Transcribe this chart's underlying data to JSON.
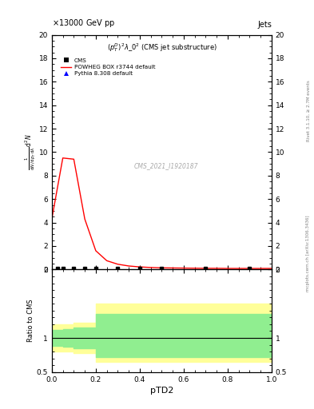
{
  "title_top": "13000 GeV pp",
  "title_right": "Jets",
  "plot_title": "$(p_T^D)^2\\lambda\\_0^2$ (CMS jet substructure)",
  "cms_label": "CMS_2021_I1920187",
  "xlabel": "pTD2",
  "ylabel_ratio": "Ratio to CMS",
  "right_label_top": "Rivet 3.1.10, ≥ 2.7M events",
  "right_label_bottom": "mcplots.cern.ch [arXiv:1306.3436]",
  "xlim": [
    0,
    1
  ],
  "ylim_main": [
    0,
    20
  ],
  "ylim_ratio": [
    0.5,
    2
  ],
  "yticks_main": [
    0,
    2,
    4,
    6,
    8,
    10,
    12,
    14,
    16,
    18,
    20
  ],
  "yticks_ratio": [
    0.5,
    1,
    2
  ],
  "cms_data_x": [
    0.025,
    0.05,
    0.1,
    0.15,
    0.2,
    0.3,
    0.4,
    0.5,
    0.7,
    0.9
  ],
  "cms_data_y": [
    0.08,
    0.08,
    0.08,
    0.08,
    0.08,
    0.08,
    0.08,
    0.08,
    0.08,
    0.08
  ],
  "cms_color": "#000080",
  "powheg_x": [
    0.0,
    0.05,
    0.1,
    0.15,
    0.2,
    0.25,
    0.3,
    0.35,
    0.4,
    0.45,
    0.5,
    0.55,
    0.6,
    0.65,
    0.7,
    0.75,
    0.8,
    0.85,
    0.9,
    0.95,
    1.0
  ],
  "powheg_y": [
    4.3,
    9.5,
    9.4,
    4.3,
    1.6,
    0.75,
    0.45,
    0.3,
    0.22,
    0.17,
    0.14,
    0.13,
    0.12,
    0.11,
    0.1,
    0.1,
    0.09,
    0.09,
    0.09,
    0.09,
    0.09
  ],
  "powheg_color": "#ff0000",
  "pythia_data_x": [
    0.025,
    0.05,
    0.1,
    0.15,
    0.2,
    0.3,
    0.4,
    0.5,
    0.7,
    0.9
  ],
  "pythia_data_y": [
    0.08,
    0.08,
    0.08,
    0.08,
    0.08,
    0.08,
    0.08,
    0.08,
    0.08,
    0.08
  ],
  "pythia_color": "#0000ff",
  "ratio_x": [
    0.0,
    0.05,
    0.1,
    0.15,
    0.2,
    0.25,
    0.3,
    1.0
  ],
  "ratio_green_upper": [
    1.12,
    1.13,
    1.15,
    1.15,
    1.35,
    1.35,
    1.35,
    1.35
  ],
  "ratio_green_lower": [
    0.88,
    0.87,
    0.85,
    0.85,
    0.72,
    0.72,
    0.72,
    0.72
  ],
  "ratio_yellow_upper": [
    1.2,
    1.2,
    1.22,
    1.22,
    1.5,
    1.5,
    1.5,
    1.5
  ],
  "ratio_yellow_lower": [
    0.8,
    0.8,
    0.78,
    0.78,
    0.65,
    0.65,
    0.65,
    0.65
  ],
  "green_color": "#90EE90",
  "yellow_color": "#FFFF99",
  "background_color": "#ffffff",
  "ylabel_main_lines": [
    "mathrm d$^2$N",
    "mathrm d p$_T$ mathrm d lambda"
  ]
}
